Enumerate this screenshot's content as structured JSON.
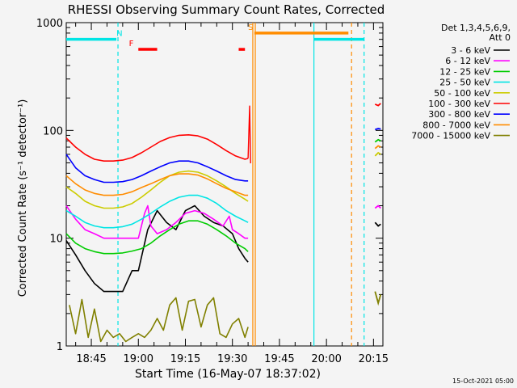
{
  "chart_data": {
    "type": "line",
    "title": "RHESSI Observing Summary Count Rates, Corrected",
    "xlabel": "Start Time (16-May-07 18:37:02)",
    "ylabel": "Corrected Count Rate (s⁻¹ detector⁻¹)",
    "yscale": "log",
    "ylim": [
      1,
      1000
    ],
    "xlim_min": [
      37,
      138
    ],
    "x_tick_labels": [
      "18:45",
      "19:00",
      "19:15",
      "19:30",
      "19:45",
      "20:00",
      "20:15"
    ],
    "x_tick_minutes": [
      45,
      60,
      75,
      90,
      105,
      120,
      135
    ],
    "y_tick_labels": [
      "1",
      "10",
      "100",
      "1000"
    ],
    "y_tick_values": [
      1,
      10,
      100,
      1000
    ],
    "legend_header": [
      "Det 1,3,4,5,6,9,",
      "Att 0"
    ],
    "legend_position": "right",
    "series": [
      {
        "name": "3 - 6 keV",
        "color": "#000000",
        "x": [
          37,
          40,
          43,
          46,
          49,
          52,
          55,
          58,
          60,
          63,
          66,
          69,
          72,
          75,
          78,
          81,
          84,
          87,
          90,
          92,
          94,
          95
        ],
        "values": [
          9.5,
          7,
          5,
          3.8,
          3.2,
          3.2,
          3.2,
          5,
          5,
          12,
          18,
          14,
          12,
          18,
          20,
          16,
          14,
          13,
          11,
          8,
          6.5,
          6
        ]
      },
      {
        "name": "6 - 12 keV",
        "color": "#ff00ff",
        "x": [
          37,
          40,
          43,
          46,
          49,
          52,
          55,
          58,
          60,
          62,
          63,
          64,
          66,
          69,
          72,
          75,
          78,
          81,
          84,
          87,
          89,
          90,
          92,
          94,
          95
        ],
        "values": [
          20,
          15,
          12,
          11,
          10,
          10,
          10,
          10,
          10,
          17,
          20,
          13,
          11,
          12,
          14,
          17,
          18,
          17,
          15,
          13,
          16,
          12,
          11,
          10,
          10
        ]
      },
      {
        "name": "12 - 25 keV",
        "color": "#00cc00",
        "x": [
          37,
          40,
          43,
          46,
          49,
          52,
          55,
          58,
          61,
          64,
          67,
          70,
          73,
          76,
          79,
          82,
          85,
          88,
          91,
          94,
          95
        ],
        "values": [
          11,
          9,
          8,
          7.5,
          7.2,
          7.2,
          7.3,
          7.6,
          8,
          9,
          10.5,
          12,
          13.5,
          14.5,
          14.5,
          13.5,
          12,
          10.5,
          9,
          8,
          7.5
        ]
      },
      {
        "name": "25 - 50 keV",
        "color": "#00e5e5",
        "x": [
          37,
          40,
          43,
          46,
          49,
          52,
          55,
          58,
          61,
          64,
          67,
          70,
          73,
          76,
          79,
          82,
          85,
          88,
          91,
          94,
          95
        ],
        "values": [
          18,
          16,
          14,
          13,
          12.5,
          12.5,
          12.8,
          13.5,
          15,
          17,
          19.5,
          22,
          24,
          25,
          25,
          23.5,
          21,
          18,
          16,
          14.5,
          14
        ]
      },
      {
        "name": "50 - 100 keV",
        "color": "#cccc00",
        "x": [
          37,
          40,
          43,
          46,
          49,
          52,
          55,
          58,
          61,
          64,
          67,
          70,
          73,
          76,
          79,
          82,
          85,
          88,
          91,
          94,
          95
        ],
        "values": [
          30,
          26,
          22,
          20,
          19,
          19,
          19.5,
          21,
          24,
          28,
          33,
          38,
          41,
          42,
          41,
          38,
          34,
          30,
          26,
          23,
          22
        ]
      },
      {
        "name": "100 - 300 keV",
        "color": "#ff0000",
        "x": [
          37,
          40,
          43,
          46,
          49,
          52,
          55,
          58,
          61,
          64,
          67,
          70,
          73,
          76,
          79,
          82,
          85,
          88,
          91,
          94,
          95
        ],
        "values": [
          85,
          70,
          60,
          54,
          52,
          52,
          53,
          56,
          62,
          70,
          79,
          86,
          90,
          91,
          89,
          83,
          74,
          65,
          58,
          54,
          55
        ]
      },
      {
        "name": "300 - 800 keV",
        "color": "#0000ff",
        "x": [
          37,
          40,
          43,
          46,
          49,
          52,
          55,
          58,
          61,
          64,
          67,
          70,
          73,
          76,
          79,
          82,
          85,
          88,
          91,
          94,
          95
        ],
        "values": [
          60,
          45,
          38,
          35,
          33,
          33,
          33.5,
          35,
          38,
          42,
          46,
          50,
          52,
          52,
          50,
          46,
          42,
          38,
          35,
          34,
          34
        ]
      },
      {
        "name": "800 - 7000 keV",
        "color": "#ff8c00",
        "x": [
          37,
          40,
          43,
          46,
          49,
          52,
          55,
          58,
          61,
          64,
          67,
          70,
          73,
          76,
          79,
          82,
          85,
          88,
          91,
          94,
          95
        ],
        "values": [
          38,
          32,
          28,
          26,
          25,
          25,
          25.5,
          27,
          29.5,
          32,
          35,
          38,
          39.5,
          39.5,
          38.5,
          35.5,
          32,
          29,
          27,
          25,
          25
        ]
      },
      {
        "name": "7000 - 15000 keV",
        "color": "#808000",
        "x": [
          38,
          40,
          42,
          44,
          46,
          48,
          50,
          52,
          54,
          56,
          58,
          60,
          62,
          64,
          66,
          68,
          70,
          72,
          74,
          76,
          78,
          80,
          82,
          84,
          86,
          88,
          90,
          92,
          94,
          95
        ],
        "values": [
          2.4,
          1.3,
          2.7,
          1.2,
          2.2,
          1.1,
          1.4,
          1.2,
          1.3,
          1.1,
          1.2,
          1.3,
          1.2,
          1.4,
          1.8,
          1.4,
          2.4,
          2.8,
          1.4,
          2.6,
          2.7,
          1.5,
          2.4,
          2.8,
          1.3,
          1.2,
          1.6,
          1.8,
          1.2,
          1.5
        ]
      }
    ],
    "late_values": [
      {
        "series": "100 - 300 keV",
        "x": [
          135.5,
          136.5,
          137.3
        ],
        "values": [
          175,
          170,
          178
        ]
      },
      {
        "series": "300 - 800 keV",
        "x": [
          135.5,
          136.5,
          137.3
        ],
        "values": [
          102,
          104,
          103
        ]
      },
      {
        "series": "12 - 25 keV",
        "x": [
          135.5,
          136.5,
          137.3
        ],
        "values": [
          78,
          82,
          80
        ]
      },
      {
        "series": "800 - 7000 keV",
        "x": [
          135.5,
          136.5,
          137.3
        ],
        "values": [
          68,
          72,
          70
        ]
      },
      {
        "series": "50 - 100 keV",
        "x": [
          135.5,
          136.5,
          137.3
        ],
        "values": [
          58,
          62,
          60
        ]
      },
      {
        "series": "6 - 12 keV",
        "x": [
          135.5,
          136.5,
          137.3
        ],
        "values": [
          19,
          20,
          19
        ]
      },
      {
        "series": "3 - 6 keV",
        "x": [
          135.5,
          136.5,
          137.3
        ],
        "values": [
          14,
          13,
          13.5
        ]
      },
      {
        "series": "7000 - 15000 keV",
        "x": [
          135.5,
          136.5,
          137.3
        ],
        "values": [
          3.2,
          2.5,
          3.0
        ]
      }
    ],
    "spike": {
      "x": 95.5,
      "value": 170,
      "color": "#ff0000"
    },
    "event_bars": [
      {
        "label": "N",
        "color": "#00e5e5",
        "x_start": 37,
        "x_end": 53,
        "value": 700,
        "label_x": 53
      },
      {
        "label": "",
        "color": "#00e5e5",
        "x_start": 116,
        "x_end": 132,
        "value": 700,
        "label_x": 116
      },
      {
        "label": "F",
        "color": "#ff0000",
        "x_start": 60,
        "x_end": 66,
        "value": 565,
        "label_x": 57
      },
      {
        "label": "",
        "color": "#ff0000",
        "x_start": 92,
        "x_end": 94,
        "value": 565,
        "label_x": 92
      },
      {
        "label": "S",
        "color": "#ff8c00",
        "x_start": 97,
        "x_end": 127,
        "value": 800,
        "label_x": 95
      }
    ],
    "vertical_lines": [
      {
        "x": 53.5,
        "color": "#00e5e5",
        "style": "dashed"
      },
      {
        "x": 96.5,
        "color": "#ff8c00",
        "style": "solid"
      },
      {
        "x": 97.3,
        "color": "#ff8c00",
        "style": "solid"
      },
      {
        "x": 116.0,
        "color": "#00e5e5",
        "style": "solid"
      },
      {
        "x": 128.0,
        "color": "#ff8c00",
        "style": "dashed"
      },
      {
        "x": 132.0,
        "color": "#00e5e5",
        "style": "dashed"
      }
    ]
  },
  "footer_date": "15-Oct-2021 05:00"
}
